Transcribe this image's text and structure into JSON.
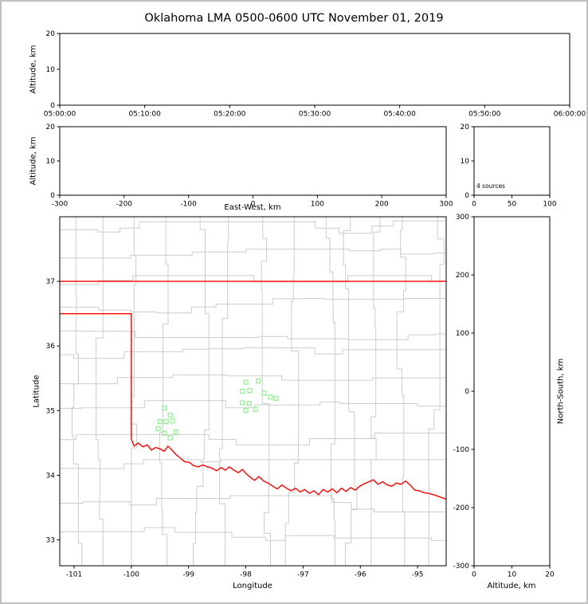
{
  "title": "Oklahoma LMA 0500-0600 UTC November 01, 2019",
  "colors": {
    "background": "#ffffff",
    "axis": "#000000",
    "county": "#cccccc",
    "state_border": "#ff0000",
    "marker": "#90ee90"
  },
  "chart_data": [
    {
      "id": "time_height",
      "type": "scatter",
      "xlabel": "",
      "ylabel": "Altitude, km",
      "xticks": [
        "05:00:00",
        "05:10:00",
        "05:20:00",
        "05:30:00",
        "05:40:00",
        "05:50:00",
        "06:00:00"
      ],
      "xlim": [
        0,
        6
      ],
      "yticks": [
        0,
        10,
        20
      ],
      "ylim": [
        0,
        20
      ],
      "points": []
    },
    {
      "id": "ew_height",
      "type": "scatter",
      "xlabel": "East-West, km",
      "ylabel": "Altitude, km",
      "xticks": [
        -300,
        -200,
        -100,
        0,
        100,
        200,
        300
      ],
      "xlim": [
        -300,
        300
      ],
      "yticks": [
        0,
        10,
        20
      ],
      "ylim": [
        0,
        20
      ],
      "points": []
    },
    {
      "id": "source_hist",
      "type": "histogram",
      "annotation": "4 sources",
      "xticks": [
        0,
        50,
        100
      ],
      "xlim": [
        0,
        100
      ],
      "yticks": [
        0,
        10,
        20
      ],
      "ylim": [
        0,
        20
      ],
      "values": []
    },
    {
      "id": "plan_view",
      "type": "scatter",
      "xlabel": "Longitude",
      "ylabel": "Latitude",
      "xticks": [
        -101,
        -100,
        -99,
        -98,
        -97,
        -96,
        -95
      ],
      "xlim": [
        -101.25,
        -94.5
      ],
      "yticks": [
        33,
        34,
        35,
        36,
        37
      ],
      "ylim": [
        32.6,
        38.0
      ],
      "marker": {
        "shape": "open-square",
        "color": "#90ee90",
        "size": 5
      },
      "points": [
        [
          -99.42,
          35.04
        ],
        [
          -99.32,
          34.93
        ],
        [
          -99.5,
          34.83
        ],
        [
          -99.39,
          34.83
        ],
        [
          -99.28,
          34.84
        ],
        [
          -99.53,
          34.72
        ],
        [
          -99.42,
          34.65
        ],
        [
          -99.32,
          34.58
        ],
        [
          -99.22,
          34.67
        ],
        [
          -98.0,
          35.44
        ],
        [
          -97.78,
          35.46
        ],
        [
          -98.06,
          35.3
        ],
        [
          -97.93,
          35.31
        ],
        [
          -97.68,
          35.27
        ],
        [
          -97.57,
          35.21
        ],
        [
          -97.47,
          35.19
        ],
        [
          -98.06,
          35.12
        ],
        [
          -97.94,
          35.11
        ],
        [
          -97.83,
          35.02
        ],
        [
          -98.0,
          35.0
        ]
      ],
      "overlays": {
        "kansas_border": [
          [
            -101.25,
            37.0
          ],
          [
            -94.5,
            37.0
          ]
        ],
        "oklahoma_border": [
          [
            -101.25,
            36.5
          ],
          [
            -100.0,
            36.5
          ],
          [
            -100.0,
            34.56
          ],
          [
            -99.95,
            34.45
          ],
          [
            -99.88,
            34.5
          ],
          [
            -99.8,
            34.44
          ],
          [
            -99.72,
            34.47
          ],
          [
            -99.65,
            34.39
          ],
          [
            -99.58,
            34.43
          ],
          [
            -99.5,
            34.41
          ],
          [
            -99.43,
            34.37
          ],
          [
            -99.36,
            34.45
          ],
          [
            -99.29,
            34.39
          ],
          [
            -99.22,
            34.32
          ],
          [
            -99.15,
            34.27
          ],
          [
            -99.07,
            34.21
          ],
          [
            -98.99,
            34.2
          ],
          [
            -98.91,
            34.15
          ],
          [
            -98.83,
            34.13
          ],
          [
            -98.75,
            34.16
          ],
          [
            -98.67,
            34.13
          ],
          [
            -98.59,
            34.11
          ],
          [
            -98.51,
            34.07
          ],
          [
            -98.43,
            34.12
          ],
          [
            -98.36,
            34.08
          ],
          [
            -98.29,
            34.13
          ],
          [
            -98.21,
            34.08
          ],
          [
            -98.13,
            34.04
          ],
          [
            -98.06,
            34.09
          ],
          [
            -97.99,
            34.02
          ],
          [
            -97.92,
            33.97
          ],
          [
            -97.85,
            33.92
          ],
          [
            -97.77,
            33.98
          ],
          [
            -97.69,
            33.91
          ],
          [
            -97.61,
            33.88
          ],
          [
            -97.53,
            33.83
          ],
          [
            -97.45,
            33.79
          ],
          [
            -97.37,
            33.85
          ],
          [
            -97.29,
            33.8
          ],
          [
            -97.21,
            33.76
          ],
          [
            -97.13,
            33.8
          ],
          [
            -97.05,
            33.74
          ],
          [
            -96.97,
            33.78
          ],
          [
            -96.89,
            33.72
          ],
          [
            -96.81,
            33.76
          ],
          [
            -96.73,
            33.7
          ],
          [
            -96.65,
            33.78
          ],
          [
            -96.57,
            33.74
          ],
          [
            -96.49,
            33.79
          ],
          [
            -96.41,
            33.73
          ],
          [
            -96.33,
            33.8
          ],
          [
            -96.25,
            33.75
          ],
          [
            -96.17,
            33.81
          ],
          [
            -96.09,
            33.77
          ],
          [
            -96.01,
            33.83
          ],
          [
            -95.93,
            33.87
          ],
          [
            -95.85,
            33.9
          ],
          [
            -95.77,
            33.93
          ],
          [
            -95.69,
            33.86
          ],
          [
            -95.61,
            33.9
          ],
          [
            -95.53,
            33.85
          ],
          [
            -95.45,
            33.83
          ],
          [
            -95.37,
            33.88
          ],
          [
            -95.29,
            33.86
          ],
          [
            -95.21,
            33.91
          ],
          [
            -95.13,
            33.85
          ],
          [
            -95.05,
            33.77
          ],
          [
            -94.97,
            33.76
          ],
          [
            -94.89,
            33.73
          ],
          [
            -94.81,
            33.72
          ],
          [
            -94.72,
            33.7
          ],
          [
            -94.63,
            33.67
          ],
          [
            -94.5,
            33.63
          ]
        ]
      }
    },
    {
      "id": "ns_height",
      "type": "scatter",
      "xlabel": "Altitude, km",
      "ylabel": "North-South, km",
      "xticks": [
        0,
        10,
        20
      ],
      "xlim": [
        0,
        20
      ],
      "yticks": [
        -300,
        -200,
        -100,
        0,
        100,
        200,
        300
      ],
      "ylim": [
        -300,
        300
      ],
      "points": []
    }
  ]
}
